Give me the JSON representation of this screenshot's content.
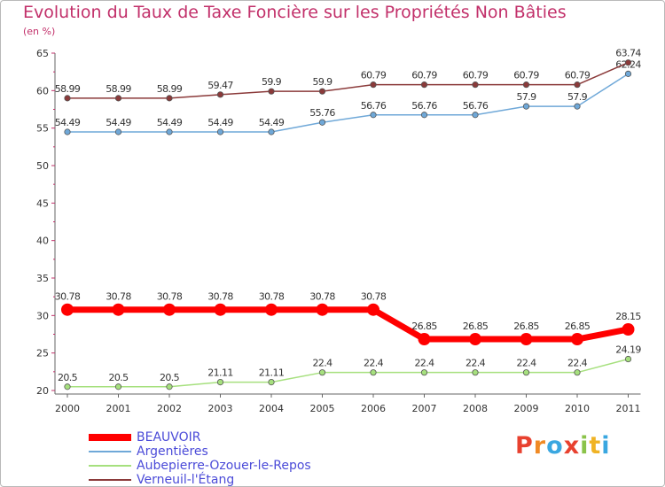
{
  "title": "Evolution du Taux de Taxe Foncière sur les Propriétés Non Bâties",
  "subtitle": "(en %)",
  "logo": {
    "text": "Proxiti",
    "letters": [
      "P",
      "r",
      "o",
      "x",
      "i",
      "t",
      "i"
    ],
    "colors": [
      "#e8412f",
      "#f08a24",
      "#3aa7e0",
      "#e8412f",
      "#8bc34a",
      "#f0b324",
      "#3aa7e0"
    ]
  },
  "chart_data": {
    "type": "line",
    "title": "Evolution du Taux de Taxe Foncière sur les Propriétés Non Bâties",
    "ylabel": "(en %)",
    "xlabel": "",
    "ylim": [
      20,
      65
    ],
    "yticks": [
      20,
      25,
      30,
      35,
      40,
      45,
      50,
      55,
      60,
      65
    ],
    "categories": [
      "2000",
      "2001",
      "2002",
      "2003",
      "2004",
      "2005",
      "2006",
      "2007",
      "2008",
      "2009",
      "2010",
      "2011"
    ],
    "series": [
      {
        "name": "BEAUVOIR",
        "color": "#ff0000",
        "values": [
          30.78,
          30.78,
          30.78,
          30.78,
          30.78,
          30.78,
          30.78,
          26.85,
          26.85,
          26.85,
          26.85,
          28.15
        ]
      },
      {
        "name": "Argentières",
        "color": "#6fa8d8",
        "values": [
          54.49,
          54.49,
          54.49,
          54.49,
          54.49,
          55.76,
          56.76,
          56.76,
          56.76,
          57.9,
          57.9,
          62.24
        ]
      },
      {
        "name": "Aubepierre-Ozouer-le-Repos",
        "color": "#a6e07e",
        "values": [
          20.5,
          20.5,
          20.5,
          21.11,
          21.11,
          22.4,
          22.4,
          22.4,
          22.4,
          22.4,
          22.4,
          24.19
        ]
      },
      {
        "name": "Verneuil-l'Étang",
        "color": "#8b3a3a",
        "values": [
          58.99,
          58.99,
          58.99,
          59.47,
          59.9,
          59.9,
          60.79,
          60.79,
          60.79,
          60.79,
          60.79,
          63.74
        ]
      }
    ],
    "labels": {
      "BEAUVOIR": [
        "30.78",
        "30.78",
        "30.78",
        "30.78",
        "30.78",
        "30.78",
        "30.78",
        "26.85",
        "26.85",
        "26.85",
        "26.85",
        "28.15"
      ],
      "Argentières": [
        "54.49",
        "54.49",
        "54.49",
        "54.49",
        "54.49",
        "55.76",
        "56.76",
        "56.76",
        "56.76",
        "57.9",
        "57.9",
        "62.24"
      ],
      "Aubepierre-Ozouer-le-Repos": [
        "20.5",
        "20.5",
        "20.5",
        "21.11",
        "21.11",
        "22.4",
        "22.4",
        "22.4",
        "22.4",
        "22.4",
        "22.4",
        "24.19"
      ],
      "Verneuil-l'Étang": [
        "58.99",
        "58.99",
        "58.99",
        "59.47",
        "59.9",
        "59.9",
        "60.79",
        "60.79",
        "60.79",
        "60.79",
        "60.79",
        "63.74"
      ]
    },
    "grid": false,
    "legend": "bottom-left"
  }
}
